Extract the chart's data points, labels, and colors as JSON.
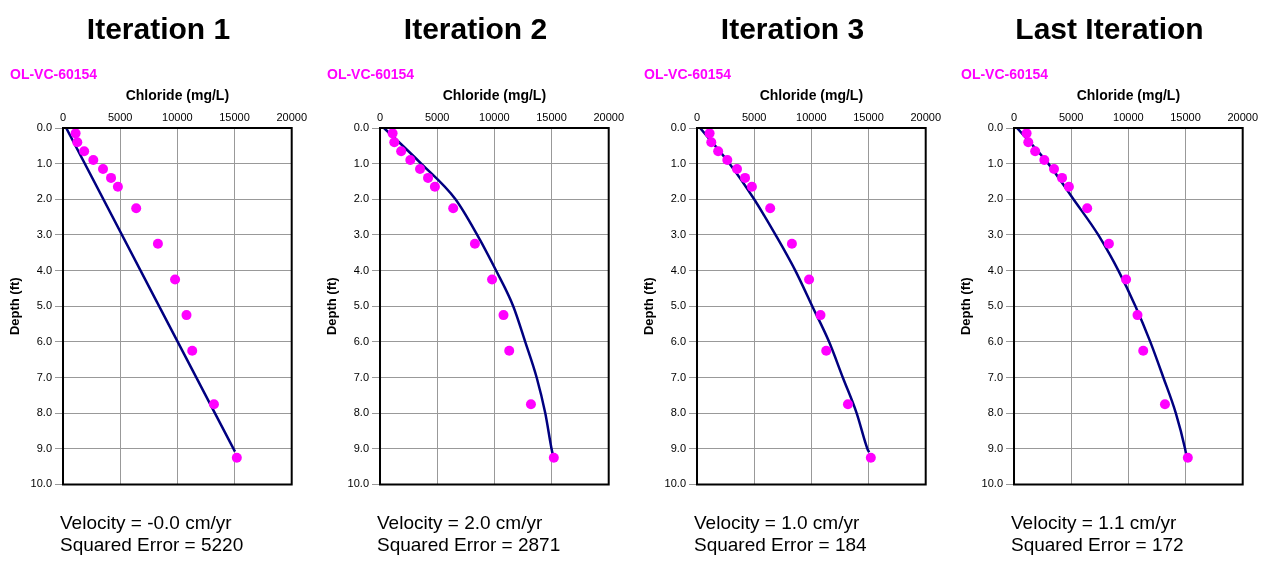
{
  "chart_data": [
    {
      "type": "scatter",
      "title": "Iteration 1",
      "subtitle": "OL-VC-60154",
      "xlabel": "Chloride (mg/L)",
      "ylabel": "Depth (ft)",
      "xlim": [
        0,
        20000
      ],
      "xticks": [
        0,
        5000,
        10000,
        15000,
        20000
      ],
      "ylim": [
        10,
        0
      ],
      "yticks": [
        {
          "value": 0,
          "label": "0.0"
        },
        {
          "value": 1,
          "label": "1.0"
        },
        {
          "value": 2,
          "label": "2.0"
        },
        {
          "value": 3,
          "label": "3.0"
        },
        {
          "value": 4,
          "label": "4.0"
        },
        {
          "value": 5,
          "label": "5.0"
        },
        {
          "value": 6,
          "label": "6.0"
        },
        {
          "value": 7,
          "label": "7.0"
        },
        {
          "value": 8,
          "label": "8.0"
        },
        {
          "value": 9,
          "label": "9.0"
        },
        {
          "value": 10,
          "label": "10.0"
        }
      ],
      "grid": true,
      "legend": false,
      "series": [
        {
          "type": "scatter",
          "color": "#ff00ff",
          "marker": "circle",
          "x": [
            1100,
            1250,
            1850,
            2650,
            3500,
            4200,
            4800,
            6400,
            8300,
            9800,
            10800,
            11300,
            13200,
            15200
          ],
          "values": [
            0.15,
            0.4,
            0.65,
            0.9,
            1.15,
            1.4,
            1.65,
            2.25,
            3.25,
            4.25,
            5.25,
            6.25,
            7.75,
            9.25
          ]
        },
        {
          "type": "line",
          "color": "#000080",
          "marker": "none",
          "x": [
            280,
            15040
          ],
          "values": [
            0,
            9.08
          ]
        }
      ],
      "annotations": [
        "Velocity = -0.0 cm/yr",
        "Squared Error = 5220"
      ]
    },
    {
      "type": "scatter",
      "title": "Iteration 2",
      "subtitle": "OL-VC-60154",
      "xlabel": "Chloride (mg/L)",
      "ylabel": "Depth (ft)",
      "xlim": [
        0,
        20000
      ],
      "xticks": [
        0,
        5000,
        10000,
        15000,
        20000
      ],
      "ylim": [
        10,
        0
      ],
      "yticks": [
        {
          "value": 0,
          "label": "0.0"
        },
        {
          "value": 1,
          "label": "1.0"
        },
        {
          "value": 2,
          "label": "2.0"
        },
        {
          "value": 3,
          "label": "3.0"
        },
        {
          "value": 4,
          "label": "4.0"
        },
        {
          "value": 5,
          "label": "5.0"
        },
        {
          "value": 6,
          "label": "6.0"
        },
        {
          "value": 7,
          "label": "7.0"
        },
        {
          "value": 8,
          "label": "8.0"
        },
        {
          "value": 9,
          "label": "9.0"
        },
        {
          "value": 10,
          "label": "10.0"
        }
      ],
      "grid": true,
      "legend": false,
      "series": [
        {
          "type": "scatter",
          "color": "#ff00ff",
          "marker": "circle",
          "x": [
            1100,
            1250,
            1850,
            2650,
            3500,
            4200,
            4800,
            6400,
            8300,
            9800,
            10800,
            11300,
            13200,
            15200
          ],
          "values": [
            0.15,
            0.4,
            0.65,
            0.9,
            1.15,
            1.4,
            1.65,
            2.25,
            3.25,
            4.25,
            5.25,
            6.25,
            7.75,
            9.25
          ]
        },
        {
          "type": "line",
          "color": "#000080",
          "marker": "none",
          "x": [
            350,
            3600,
            6600,
            8500,
            10150,
            11650,
            12700,
            13700,
            14450,
            15000,
            15100
          ],
          "values": [
            0,
            1,
            2,
            3,
            4,
            5,
            6,
            7,
            8,
            9,
            9.15
          ]
        }
      ],
      "annotations": [
        "Velocity = 2.0 cm/yr",
        "Squared Error = 2871"
      ]
    },
    {
      "type": "scatter",
      "title": "Iteration 3",
      "subtitle": "OL-VC-60154",
      "xlabel": "Chloride (mg/L)",
      "ylabel": "Depth (ft)",
      "xlim": [
        0,
        20000
      ],
      "xticks": [
        0,
        5000,
        10000,
        15000,
        20000
      ],
      "ylim": [
        10,
        0
      ],
      "yticks": [
        {
          "value": 0,
          "label": "0.0"
        },
        {
          "value": 1,
          "label": "1.0"
        },
        {
          "value": 2,
          "label": "2.0"
        },
        {
          "value": 3,
          "label": "3.0"
        },
        {
          "value": 4,
          "label": "4.0"
        },
        {
          "value": 5,
          "label": "5.0"
        },
        {
          "value": 6,
          "label": "6.0"
        },
        {
          "value": 7,
          "label": "7.0"
        },
        {
          "value": 8,
          "label": "8.0"
        },
        {
          "value": 9,
          "label": "9.0"
        },
        {
          "value": 10,
          "label": "10.0"
        }
      ],
      "grid": true,
      "legend": false,
      "series": [
        {
          "type": "scatter",
          "color": "#ff00ff",
          "marker": "circle",
          "x": [
            1100,
            1250,
            1850,
            2650,
            3500,
            4200,
            4800,
            6400,
            8300,
            9800,
            10800,
            11300,
            13200,
            15200
          ],
          "values": [
            0.15,
            0.4,
            0.65,
            0.9,
            1.15,
            1.4,
            1.65,
            2.25,
            3.25,
            4.25,
            5.25,
            6.25,
            7.75,
            9.25
          ]
        },
        {
          "type": "line",
          "color": "#000080",
          "marker": "none",
          "x": [
            270,
            2850,
            5000,
            6870,
            8600,
            10080,
            11550,
            12750,
            13960,
            14900,
            15050
          ],
          "values": [
            0,
            1,
            2,
            3,
            4,
            5,
            6,
            7,
            8,
            9,
            9.1
          ]
        }
      ],
      "annotations": [
        "Velocity = 1.0 cm/yr",
        "Squared Error = 184"
      ]
    },
    {
      "type": "scatter",
      "title": "Last Iteration",
      "subtitle": "OL-VC-60154",
      "xlabel": "Chloride (mg/L)",
      "ylabel": "Depth (ft)",
      "xlim": [
        0,
        20000
      ],
      "xticks": [
        0,
        5000,
        10000,
        15000,
        20000
      ],
      "ylim": [
        10,
        0
      ],
      "yticks": [
        {
          "value": 0,
          "label": "0.0"
        },
        {
          "value": 1,
          "label": "1.0"
        },
        {
          "value": 2,
          "label": "2.0"
        },
        {
          "value": 3,
          "label": "3.0"
        },
        {
          "value": 4,
          "label": "4.0"
        },
        {
          "value": 5,
          "label": "5.0"
        },
        {
          "value": 6,
          "label": "6.0"
        },
        {
          "value": 7,
          "label": "7.0"
        },
        {
          "value": 8,
          "label": "8.0"
        },
        {
          "value": 9,
          "label": "9.0"
        },
        {
          "value": 10,
          "label": "10.0"
        }
      ],
      "grid": true,
      "legend": false,
      "series": [
        {
          "type": "scatter",
          "color": "#ff00ff",
          "marker": "circle",
          "x": [
            1100,
            1250,
            1850,
            2650,
            3500,
            4200,
            4800,
            6400,
            8300,
            9800,
            10800,
            11300,
            13200,
            15200
          ],
          "values": [
            0.15,
            0.4,
            0.65,
            0.9,
            1.15,
            1.4,
            1.65,
            2.25,
            3.25,
            4.25,
            5.25,
            6.25,
            7.75,
            9.25
          ]
        },
        {
          "type": "line",
          "color": "#000080",
          "marker": "none",
          "x": [
            270,
            3000,
            5200,
            7370,
            9130,
            10620,
            11920,
            13060,
            14150,
            14960,
            15050
          ],
          "values": [
            0,
            1,
            2,
            3,
            4,
            5,
            6,
            7,
            8,
            9,
            9.15
          ]
        }
      ],
      "annotations": [
        "Velocity = 1.1 cm/yr",
        "Squared Error = 172"
      ]
    }
  ]
}
